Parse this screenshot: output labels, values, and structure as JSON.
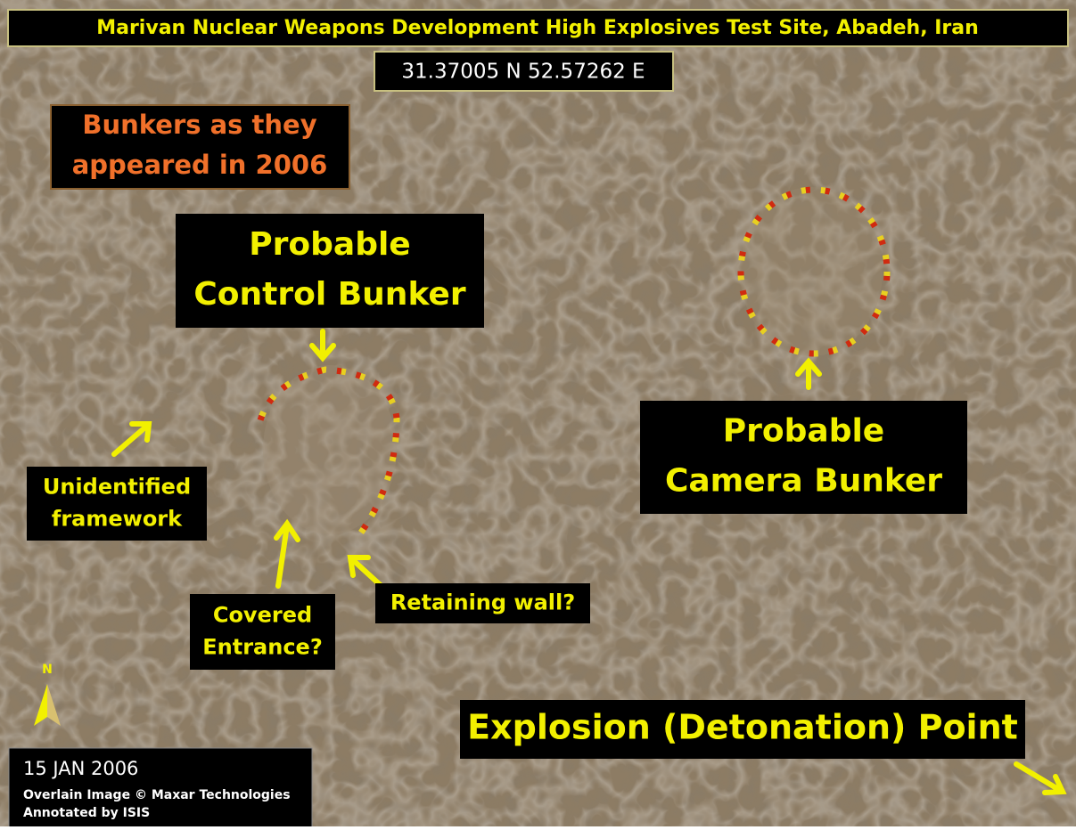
{
  "header": {
    "title": "Marivan Nuclear Weapons Development High Explosives Test Site, Abadeh, Iran",
    "coordinates": "31.37005 N 52.57262 E"
  },
  "note": [
    "Bunkers as they",
    "appeared in 2006"
  ],
  "labels": [
    {
      "lines": [
        "Probable",
        "Control Bunker"
      ]
    },
    {
      "lines": [
        "Probable",
        "Camera Bunker"
      ]
    },
    {
      "lines": [
        "Unidentified",
        "framework"
      ]
    },
    {
      "lines": [
        "Covered",
        "Entrance?"
      ]
    },
    {
      "lines": [
        "Retaining wall?"
      ]
    },
    {
      "lines": [
        "Explosion (Detonation) Point"
      ]
    }
  ],
  "north": "N",
  "footer": {
    "date": "15 JAN 2006",
    "credit": "Overlain Image © Maxar Technologies",
    "annotation": "Annotated by ISIS"
  }
}
